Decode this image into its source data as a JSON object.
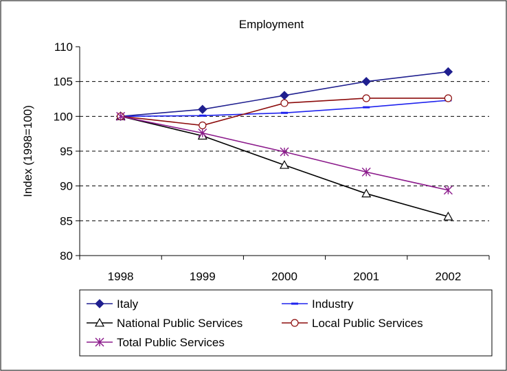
{
  "chart_data": {
    "type": "line",
    "title": "Employment",
    "xlabel": "",
    "ylabel": "Index (1998=100)",
    "categories": [
      "1998",
      "1999",
      "2000",
      "2001",
      "2002"
    ],
    "ylim": [
      80,
      110
    ],
    "yticks": [
      80,
      85,
      90,
      95,
      100,
      105,
      110
    ],
    "grid": "horizontal dashed",
    "legend_position": "bottom",
    "series": [
      {
        "name": "Italy",
        "color": "#1f1f8f",
        "marker": "diamond-filled",
        "values": [
          100,
          101,
          103,
          105,
          106.4
        ]
      },
      {
        "name": "Industry",
        "color": "#1e22ee",
        "marker": "dash",
        "values": [
          100,
          100.1,
          100.5,
          101.3,
          102.3
        ]
      },
      {
        "name": "National Public Services",
        "color": "#000000",
        "marker": "triangle-open",
        "values": [
          100,
          97.2,
          93,
          88.9,
          85.6
        ]
      },
      {
        "name": "Local Public Services",
        "color": "#8b0a0a",
        "marker": "circle-open",
        "values": [
          100,
          98.7,
          101.9,
          102.6,
          102.6
        ]
      },
      {
        "name": "Total Public Services",
        "color": "#8b1a8b",
        "marker": "star",
        "values": [
          100,
          97.6,
          94.9,
          92,
          89.4
        ]
      }
    ]
  }
}
